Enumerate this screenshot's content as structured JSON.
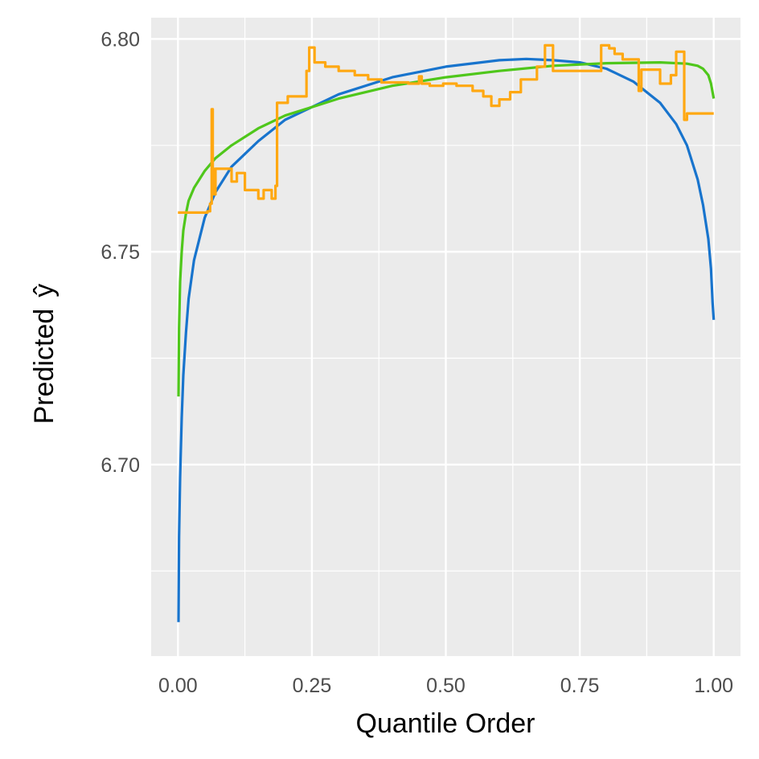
{
  "chart_data": {
    "type": "line",
    "xlabel": "Quantile Order",
    "ylabel": "Predicted",
    "ylabel_symbol": "ŷ",
    "xlim": [
      -0.05,
      1.05
    ],
    "ylim": [
      6.655,
      6.805
    ],
    "x_ticks": [
      0.0,
      0.25,
      0.5,
      0.75,
      1.0
    ],
    "x_tick_labels": [
      "0.00",
      "0.25",
      "0.50",
      "0.75",
      "1.00"
    ],
    "y_ticks": [
      6.7,
      6.75,
      6.8
    ],
    "y_tick_labels": [
      "6.70",
      "6.75",
      "6.80"
    ],
    "grid": true,
    "panel_background": "#ebebeb",
    "grid_color": "#ffffff",
    "series": [
      {
        "color": "#1874cd",
        "step": false,
        "x": [
          0.001,
          0.002,
          0.004,
          0.007,
          0.01,
          0.015,
          0.02,
          0.03,
          0.05,
          0.07,
          0.1,
          0.15,
          0.2,
          0.25,
          0.3,
          0.4,
          0.5,
          0.6,
          0.65,
          0.7,
          0.75,
          0.8,
          0.85,
          0.9,
          0.93,
          0.95,
          0.97,
          0.98,
          0.99,
          0.995,
          0.998,
          1.0
        ],
        "y": [
          6.663,
          6.683,
          6.697,
          6.711,
          6.721,
          6.731,
          6.739,
          6.748,
          6.758,
          6.764,
          6.77,
          6.776,
          6.781,
          6.784,
          6.787,
          6.791,
          6.7935,
          6.795,
          6.7953,
          6.795,
          6.7945,
          6.793,
          6.79,
          6.785,
          6.78,
          6.775,
          6.767,
          6.761,
          6.753,
          6.746,
          6.738,
          6.734
        ]
      },
      {
        "color": "#4fc71b",
        "step": false,
        "x": [
          0.001,
          0.002,
          0.004,
          0.007,
          0.01,
          0.015,
          0.02,
          0.03,
          0.05,
          0.07,
          0.1,
          0.15,
          0.2,
          0.25,
          0.3,
          0.4,
          0.5,
          0.6,
          0.7,
          0.8,
          0.9,
          0.95,
          0.97,
          0.98,
          0.99,
          0.995,
          1.0
        ],
        "y": [
          6.716,
          6.732,
          6.743,
          6.75,
          6.755,
          6.759,
          6.762,
          6.765,
          6.769,
          6.772,
          6.775,
          6.779,
          6.782,
          6.784,
          6.786,
          6.789,
          6.791,
          6.7925,
          6.7937,
          6.7943,
          6.7945,
          6.7942,
          6.7937,
          6.793,
          6.7915,
          6.7895,
          6.786
        ]
      },
      {
        "color": "#ffa812",
        "step": true,
        "x": [
          0.0,
          0.055,
          0.06,
          0.063,
          0.065,
          0.067,
          0.07,
          0.075,
          0.1,
          0.11,
          0.125,
          0.14,
          0.15,
          0.16,
          0.175,
          0.182,
          0.185,
          0.205,
          0.24,
          0.245,
          0.255,
          0.275,
          0.3,
          0.33,
          0.355,
          0.38,
          0.405,
          0.43,
          0.45,
          0.455,
          0.47,
          0.495,
          0.52,
          0.55,
          0.57,
          0.585,
          0.6,
          0.62,
          0.64,
          0.67,
          0.685,
          0.7,
          0.72,
          0.76,
          0.79,
          0.805,
          0.815,
          0.83,
          0.85,
          0.86,
          0.865,
          0.87,
          0.9,
          0.905,
          0.92,
          0.93,
          0.94,
          0.945,
          0.95,
          1.0
        ],
        "y": [
          6.7592,
          6.7595,
          6.7613,
          6.7835,
          6.7695,
          6.7635,
          6.7695,
          6.7695,
          6.7665,
          6.7685,
          6.7645,
          6.7645,
          6.7625,
          6.7645,
          6.7625,
          6.7655,
          6.785,
          6.7865,
          6.7925,
          6.798,
          6.7945,
          6.7935,
          6.7925,
          6.7915,
          6.7905,
          6.7898,
          6.7898,
          6.7895,
          6.7912,
          6.7895,
          6.789,
          6.7895,
          6.789,
          6.7878,
          6.7865,
          6.7843,
          6.7858,
          6.7875,
          6.7905,
          6.7935,
          6.7985,
          6.7925,
          6.7925,
          6.7925,
          6.7985,
          6.7978,
          6.7965,
          6.7952,
          6.7952,
          6.7878,
          6.7928,
          6.7928,
          6.7895,
          6.7895,
          6.7915,
          6.797,
          6.797,
          6.781,
          6.7825,
          6.7825
        ]
      }
    ]
  }
}
